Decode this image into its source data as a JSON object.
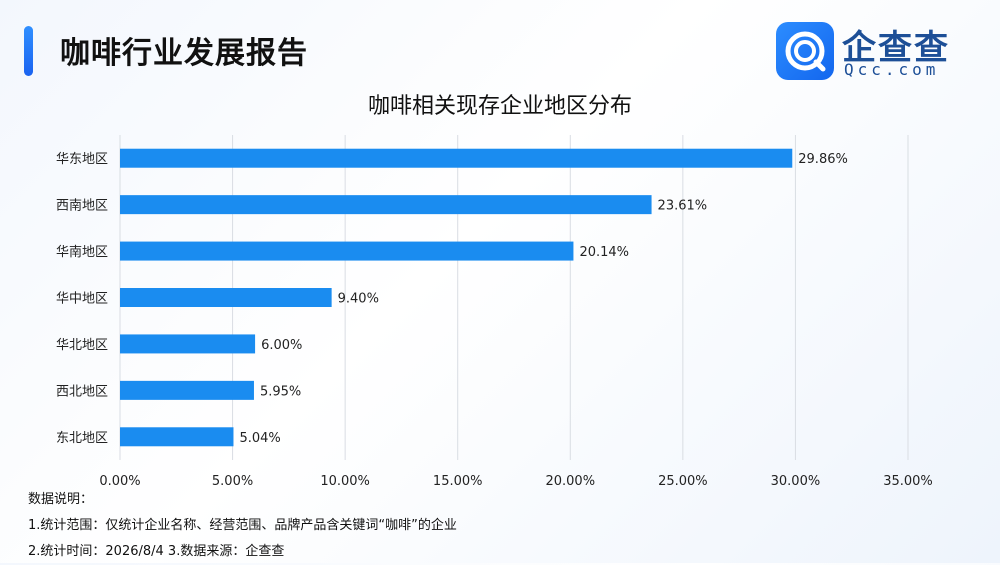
{
  "header": {
    "title": "咖啡行业发展报告"
  },
  "logo": {
    "name": "企查查",
    "domain": "Qcc.com"
  },
  "colors": {
    "bar": "#1a8cf0",
    "grid": "#d9dde3",
    "accent": "#1f7bf5"
  },
  "chart_data": {
    "type": "bar",
    "orientation": "horizontal",
    "title": "咖啡相关现存企业地区分布",
    "categories": [
      "华东地区",
      "西南地区",
      "华南地区",
      "华中地区",
      "华北地区",
      "西北地区",
      "东北地区"
    ],
    "values": [
      29.86,
      23.61,
      20.14,
      9.4,
      6.0,
      5.95,
      5.04
    ],
    "value_labels": [
      "29.86%",
      "23.61%",
      "20.14%",
      "9.40%",
      "6.00%",
      "5.95%",
      "5.04%"
    ],
    "xlim": [
      0,
      35
    ],
    "x_ticks": [
      "0.00%",
      "5.00%",
      "10.00%",
      "15.00%",
      "20.00%",
      "25.00%",
      "30.00%",
      "35.00%"
    ],
    "grid": true
  },
  "notes": {
    "heading": "数据说明：",
    "line1": "1.统计范围：仅统计企业名称、经营范围、品牌产品含关键词“咖啡”的企业",
    "line2": "2.统计时间：2026/8/4 3.数据来源：企查查"
  }
}
